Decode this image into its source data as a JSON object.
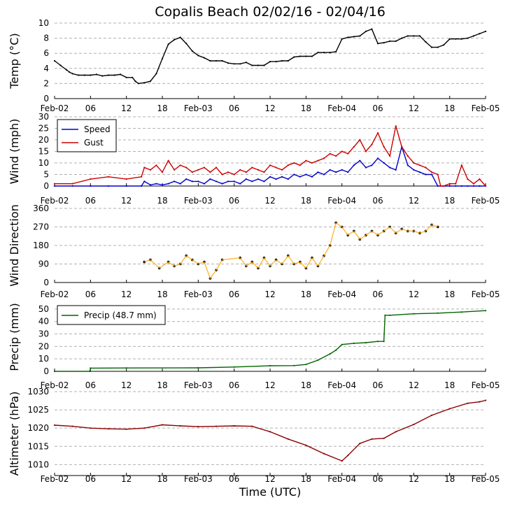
{
  "title": "Copalis Beach 02/02/16 - 02/04/16",
  "xlabel": "Time (UTC)",
  "x_tick_labels": [
    "Feb-02",
    "06",
    "12",
    "18",
    "Feb-03",
    "06",
    "12",
    "18",
    "Feb-04",
    "06",
    "12",
    "18",
    "Feb-05"
  ],
  "colors": {
    "temp": "#000000",
    "speed": "#0000cc",
    "gust": "#cc0000",
    "direction": "#ffa500",
    "precip": "#006400",
    "altimeter": "#8b0000",
    "grid": "#b0b0b0"
  },
  "chart_data": [
    {
      "type": "line",
      "ylabel": "Temp (°C)",
      "ylim": [
        0,
        10
      ],
      "yticks": [
        0,
        2,
        4,
        6,
        8,
        10
      ],
      "x_unit": "hours since Feb-02 00 UTC",
      "xlim": [
        0,
        72
      ],
      "grid": true,
      "series": [
        {
          "name": "Temp",
          "color": "#000000",
          "x": [
            0,
            1,
            2,
            2.5,
            3,
            4,
            5,
            6,
            7,
            8,
            9,
            10,
            11,
            12,
            13,
            13.5,
            14,
            15,
            16,
            17,
            18,
            19,
            20,
            21,
            22,
            23,
            24,
            25,
            26,
            27,
            28,
            29,
            30,
            31,
            32,
            33,
            34,
            35,
            36,
            37,
            38,
            39,
            40,
            41,
            42,
            43,
            44,
            45,
            46,
            47,
            48,
            49,
            50,
            51,
            52,
            53,
            54,
            55,
            56,
            57,
            58,
            59,
            60,
            61,
            62,
            63,
            64,
            65,
            66,
            67,
            68,
            69,
            70,
            71,
            72
          ],
          "values": [
            5,
            4.4,
            3.8,
            3.5,
            3.3,
            3.1,
            3.1,
            3.1,
            3.2,
            3.0,
            3.1,
            3.1,
            3.2,
            2.8,
            2.8,
            2.3,
            2.0,
            2.1,
            2.3,
            3.3,
            5.3,
            7.2,
            7.8,
            8.1,
            7.3,
            6.3,
            5.7,
            5.4,
            5.0,
            5.0,
            5.0,
            4.7,
            4.6,
            4.6,
            4.8,
            4.4,
            4.4,
            4.4,
            4.9,
            4.9,
            5.0,
            5.0,
            5.5,
            5.6,
            5.6,
            5.6,
            6.1,
            6.1,
            6.1,
            6.2,
            7.9,
            8.1,
            8.2,
            8.3,
            8.9,
            9.2,
            7.3,
            7.4,
            7.6,
            7.6,
            8.0,
            8.3,
            8.3,
            8.3,
            7.5,
            6.8,
            6.8,
            7.1,
            7.9,
            7.9,
            7.9,
            8.0,
            8.3,
            8.6,
            8.9
          ]
        }
      ]
    },
    {
      "type": "line",
      "ylabel": "Wind (mph)",
      "ylim": [
        0,
        30
      ],
      "yticks": [
        0,
        5,
        10,
        15,
        20,
        25,
        30
      ],
      "xlim": [
        0,
        72
      ],
      "grid": true,
      "legend": {
        "placement": "top-left",
        "entries": [
          "Speed",
          "Gust"
        ]
      },
      "series": [
        {
          "name": "Speed",
          "color": "#0000cc",
          "x": [
            0,
            3,
            6,
            9,
            12,
            14.5,
            15,
            16,
            17,
            18,
            19,
            20,
            21,
            22,
            23,
            24,
            25,
            26,
            27,
            28,
            29,
            30,
            31,
            32,
            33,
            34,
            35,
            36,
            37,
            38,
            39,
            40,
            41,
            42,
            43,
            44,
            45,
            46,
            47,
            48,
            49,
            50,
            51,
            52,
            53,
            54,
            55,
            56,
            57,
            58,
            59,
            60,
            61,
            62,
            63,
            64,
            65,
            66,
            67,
            68,
            69,
            70,
            71,
            72
          ],
          "values": [
            0,
            0,
            0,
            0,
            0,
            0,
            2,
            0.5,
            1,
            0.5,
            1,
            2,
            1,
            3,
            2,
            2,
            1,
            3,
            2,
            1,
            2,
            2,
            1,
            3,
            2,
            3,
            2,
            4,
            3,
            4,
            3,
            5,
            4,
            5,
            4,
            6,
            5,
            7,
            6,
            7,
            6,
            9,
            11,
            8,
            9,
            12,
            10,
            8,
            7,
            17,
            9,
            7,
            6,
            5,
            5,
            0,
            0,
            0,
            0,
            0,
            0,
            0,
            0,
            0
          ]
        },
        {
          "name": "Gust",
          "color": "#cc0000",
          "x": [
            0,
            3,
            6,
            9,
            12,
            14.5,
            15,
            16,
            17,
            18,
            19,
            20,
            21,
            22,
            23,
            24,
            25,
            26,
            27,
            28,
            29,
            30,
            31,
            32,
            33,
            34,
            35,
            36,
            37,
            38,
            39,
            40,
            41,
            42,
            43,
            44,
            45,
            46,
            47,
            48,
            49,
            50,
            51,
            52,
            53,
            54,
            55,
            56,
            57,
            58,
            59,
            60,
            61,
            62,
            63,
            64,
            64.5,
            65,
            66,
            67,
            68,
            69,
            70,
            71,
            72
          ],
          "values": [
            1,
            1,
            3,
            4,
            3,
            4,
            8,
            7,
            9,
            6,
            11,
            7,
            9,
            8,
            6,
            7,
            8,
            6,
            8,
            5,
            6,
            5,
            7,
            6,
            8,
            7,
            6,
            9,
            8,
            7,
            9,
            10,
            9,
            11,
            10,
            11,
            12,
            14,
            13,
            15,
            14,
            17,
            20,
            15,
            18,
            23,
            17,
            13,
            26,
            17,
            13,
            10,
            9,
            8,
            6,
            5,
            0,
            0,
            1,
            1,
            9,
            3,
            1,
            3,
            0
          ]
        }
      ]
    },
    {
      "type": "scatter",
      "ylabel": "Wind Direction",
      "ylim": [
        0,
        360
      ],
      "yticks": [
        0,
        90,
        180,
        270,
        360
      ],
      "xlim": [
        0,
        72
      ],
      "grid": true,
      "series": [
        {
          "name": "Direction",
          "color": "#ffa500",
          "x": [
            15,
            16,
            17.5,
            19,
            20,
            21,
            22,
            23,
            24,
            25,
            26,
            27,
            28,
            31,
            32,
            33,
            34,
            35,
            36,
            37,
            38,
            39,
            40,
            41,
            42,
            43,
            44,
            45,
            46,
            47,
            48,
            49,
            50,
            51,
            52,
            53,
            54,
            55,
            56,
            57,
            58,
            59,
            60,
            61,
            62,
            63,
            64
          ],
          "values": [
            100,
            110,
            70,
            100,
            80,
            90,
            130,
            110,
            90,
            100,
            20,
            60,
            110,
            120,
            80,
            100,
            70,
            120,
            80,
            110,
            90,
            130,
            90,
            100,
            70,
            120,
            80,
            130,
            180,
            290,
            270,
            230,
            250,
            210,
            230,
            250,
            230,
            250,
            270,
            240,
            260,
            250,
            250,
            240,
            250,
            280,
            270
          ]
        }
      ]
    },
    {
      "type": "line",
      "ylabel": "Precip (mm)",
      "ylim": [
        0,
        55
      ],
      "yticks": [
        0,
        10,
        20,
        30,
        40,
        50
      ],
      "xlim": [
        0,
        72
      ],
      "grid": true,
      "legend": {
        "placement": "top-left",
        "entries": [
          "Precip (48.7 mm)"
        ]
      },
      "series": [
        {
          "name": "Precip (48.7 mm)",
          "color": "#006400",
          "x": [
            0,
            5.9,
            6,
            12,
            24,
            30,
            36,
            40,
            42,
            44,
            46,
            47,
            48,
            50,
            52,
            54,
            55,
            55.2,
            56,
            60,
            64,
            68,
            72
          ],
          "values": [
            0,
            0,
            2.6,
            2.7,
            2.8,
            3.5,
            4.5,
            4.6,
            5.5,
            9,
            14,
            17,
            21.5,
            22.5,
            23,
            24,
            24,
            45,
            45,
            46.2,
            46.7,
            47.6,
            48.7
          ]
        }
      ]
    },
    {
      "type": "line",
      "ylabel": "Altimeter (hPa)",
      "ylim": [
        1007,
        1030
      ],
      "yticks": [
        1010,
        1015,
        1020,
        1025,
        1030
      ],
      "xlim": [
        0,
        72
      ],
      "grid": true,
      "series": [
        {
          "name": "Altimeter",
          "color": "#8b0000",
          "x": [
            0,
            3,
            6,
            9,
            12,
            15,
            18,
            21,
            24,
            27,
            30,
            33,
            36,
            39,
            42,
            45,
            48,
            49,
            51,
            53,
            55,
            57,
            60,
            63,
            66,
            69,
            71,
            72
          ],
          "values": [
            1020.8,
            1020.5,
            1020.0,
            1019.8,
            1019.7,
            1020.0,
            1020.9,
            1020.6,
            1020.4,
            1020.5,
            1020.6,
            1020.5,
            1019.0,
            1017.0,
            1015.3,
            1013.0,
            1011.0,
            1012.5,
            1015.8,
            1017.0,
            1017.2,
            1019.0,
            1021.0,
            1023.5,
            1025.3,
            1026.8,
            1027.2,
            1027.6
          ]
        }
      ]
    }
  ]
}
